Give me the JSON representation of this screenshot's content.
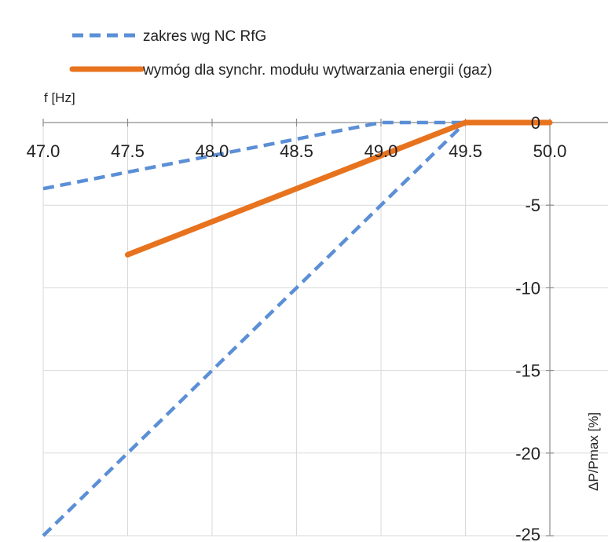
{
  "chart_data": {
    "type": "line",
    "title": "",
    "xlabel": "f [Hz]",
    "ylabel": "ΔP/Pmax [%]",
    "xlim": [
      47.0,
      50.0
    ],
    "ylim": [
      -25,
      0
    ],
    "x_ticks": [
      "47.0",
      "47.5",
      "48.0",
      "48.5",
      "49.0",
      "49.5",
      "50.0"
    ],
    "y_ticks": [
      "0",
      "-5",
      "-10",
      "-15",
      "-20",
      "-25"
    ],
    "grid": true,
    "legend_position": "top-left",
    "series": [
      {
        "name": "zakres wg NC RfG",
        "style": "dashed",
        "color": "#5B8FD6",
        "x": [
          47.0,
          49.0,
          49.5
        ],
        "y": [
          -4,
          0,
          0
        ]
      },
      {
        "name": "",
        "style": "dashed",
        "color": "#5B8FD6",
        "x": [
          47.0,
          49.5
        ],
        "y": [
          -25,
          0
        ]
      },
      {
        "name": "wymóg dla synchr. modułu wytwarzania energii (gaz)",
        "style": "solid",
        "color": "#E8731E",
        "x": [
          47.5,
          49.5,
          50.0
        ],
        "y": [
          -8,
          0,
          0
        ]
      }
    ]
  },
  "legend": {
    "items": [
      {
        "label": "zakres wg NC RfG",
        "style": "dashed",
        "color": "#5B8FD6"
      },
      {
        "label": "wymóg dla synchr. modułu wytwarzania energii (gaz)",
        "style": "solid",
        "color": "#E8731E"
      }
    ]
  }
}
